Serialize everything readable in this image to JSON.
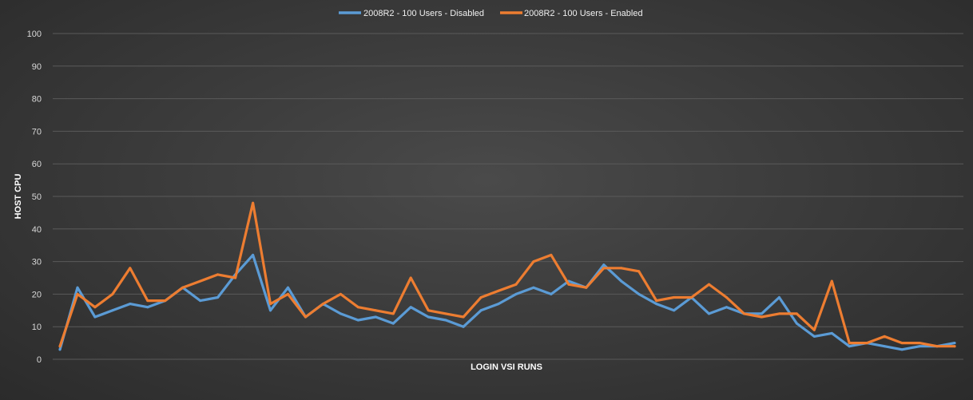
{
  "chart_data": {
    "type": "line",
    "title": "",
    "xlabel": "LOGIN VSI RUNS",
    "ylabel": "HOST CPU",
    "ylim": [
      0,
      100
    ],
    "yticks": [
      0,
      10,
      20,
      30,
      40,
      50,
      60,
      70,
      80,
      90,
      100
    ],
    "grid": true,
    "legend_position": "top",
    "series": [
      {
        "name": "2008R2 - 100 Users - Disabled",
        "color": "#5b9bd5",
        "values": [
          3,
          22,
          13,
          15,
          17,
          16,
          18,
          22,
          18,
          19,
          26,
          32,
          15,
          22,
          13,
          17,
          14,
          12,
          13,
          11,
          16,
          13,
          12,
          10,
          15,
          17,
          20,
          22,
          20,
          24,
          22,
          29,
          24,
          20,
          17,
          15,
          19,
          14,
          16,
          14,
          14,
          19,
          11,
          7,
          8,
          4,
          5,
          4,
          3,
          4,
          4,
          5
        ]
      },
      {
        "name": "2008R2 - 100 Users - Enabled",
        "color": "#ed7d31",
        "values": [
          4,
          20,
          16,
          20,
          28,
          18,
          18,
          22,
          24,
          26,
          25,
          48,
          17,
          20,
          13,
          17,
          20,
          16,
          15,
          14,
          25,
          15,
          14,
          13,
          19,
          21,
          23,
          30,
          32,
          23,
          22,
          28,
          28,
          27,
          18,
          19,
          19,
          23,
          19,
          14,
          13,
          14,
          14,
          9,
          24,
          5,
          5,
          7,
          5,
          5,
          4,
          4
        ]
      }
    ]
  }
}
